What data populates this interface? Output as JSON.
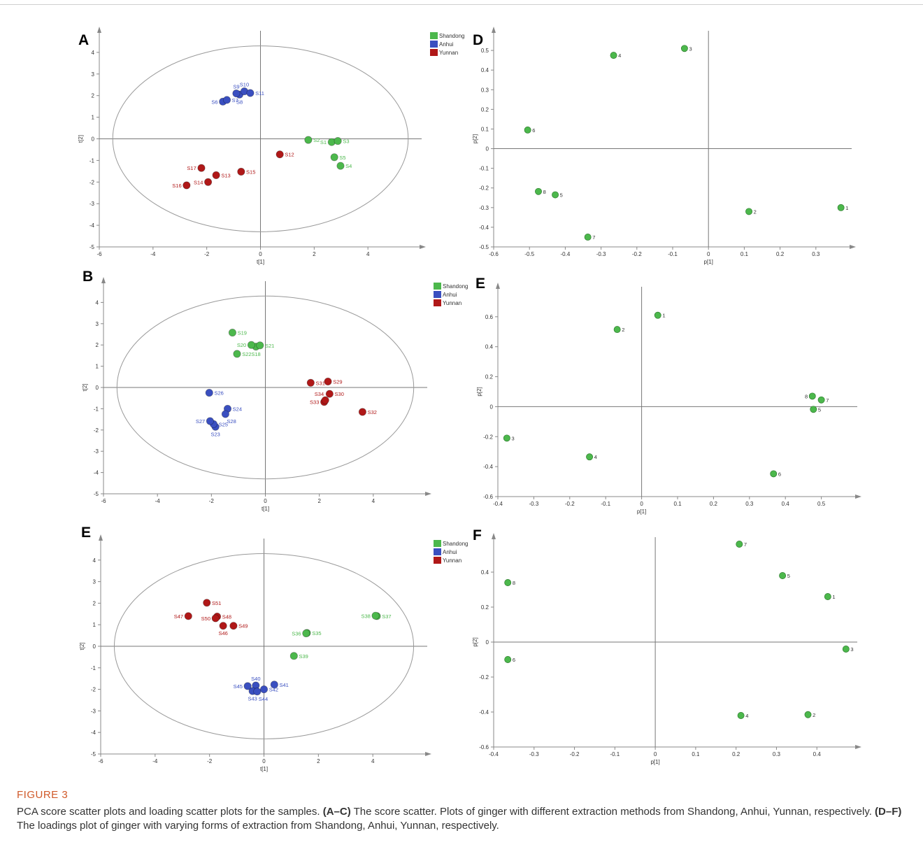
{
  "figure": {
    "label": "FIGURE 3",
    "caption_intro": "PCA score scatter plots and loading scatter plots for the samples. ",
    "caption_ref1": "(A–C)",
    "caption_mid": " The score scatter. Plots of ginger with different extraction methods from Shandong, Anhui, Yunnan, respectively. ",
    "caption_ref2": "(D–F)",
    "caption_end": " The loadings plot of ginger with varying forms of extraction from Shandong, Anhui, Yunnan, respectively."
  },
  "colors": {
    "Shandong": "#4cb84c",
    "Anhui": "#3a4fc0",
    "Yunnan": "#b01818",
    "loading": "#4cb84c"
  },
  "chart_data": [
    {
      "panel": "A",
      "type": "scatter",
      "xlabel": "t[1]",
      "ylabel": "t[2]",
      "xlim": [
        -6,
        6
      ],
      "ylim": [
        -5,
        5
      ],
      "xticks": [
        -6,
        -4,
        -2,
        0,
        2,
        4
      ],
      "yticks": [
        -5,
        -4,
        -3,
        -2,
        -1,
        0,
        1,
        2,
        3,
        4
      ],
      "ellipse": {
        "rx": 5.5,
        "ry": 4.3
      },
      "legend": [
        "Shandong",
        "Anhui",
        "Yunnan"
      ],
      "points": [
        {
          "label": "S1",
          "x": 2.65,
          "y": -0.15,
          "group": "Shandong",
          "lpos": "l"
        },
        {
          "label": "S2",
          "x": 1.78,
          "y": -0.05,
          "group": "Shandong",
          "lpos": "r"
        },
        {
          "label": "S3",
          "x": 2.88,
          "y": -0.1,
          "group": "Shandong",
          "lpos": "r"
        },
        {
          "label": "S4",
          "x": 2.98,
          "y": -1.25,
          "group": "Shandong",
          "lpos": "r"
        },
        {
          "label": "S5",
          "x": 2.75,
          "y": -0.85,
          "group": "Shandong",
          "lpos": "r"
        },
        {
          "label": "S6",
          "x": -1.4,
          "y": 1.72,
          "group": "Anhui",
          "lpos": "l"
        },
        {
          "label": "S7",
          "x": -1.25,
          "y": 1.8,
          "group": "Anhui",
          "lpos": "r"
        },
        {
          "label": "S8",
          "x": -0.78,
          "y": 2.05,
          "group": "Anhui",
          "lpos": "b"
        },
        {
          "label": "S9",
          "x": -0.9,
          "y": 2.1,
          "group": "Anhui",
          "lpos": "t"
        },
        {
          "label": "S10",
          "x": -0.6,
          "y": 2.2,
          "group": "Anhui",
          "lpos": "t"
        },
        {
          "label": "S11",
          "x": -0.38,
          "y": 2.12,
          "group": "Anhui",
          "lpos": "r"
        },
        {
          "label": "S12",
          "x": 0.72,
          "y": -0.72,
          "group": "Yunnan",
          "lpos": "r"
        },
        {
          "label": "S13",
          "x": -1.65,
          "y": -1.68,
          "group": "Yunnan",
          "lpos": "r"
        },
        {
          "label": "S14",
          "x": -1.95,
          "y": -2.0,
          "group": "Yunnan",
          "lpos": "l"
        },
        {
          "label": "S15",
          "x": -0.72,
          "y": -1.52,
          "group": "Yunnan",
          "lpos": "r"
        },
        {
          "label": "S16",
          "x": -2.75,
          "y": -2.15,
          "group": "Yunnan",
          "lpos": "l"
        },
        {
          "label": "S17",
          "x": -2.2,
          "y": -1.35,
          "group": "Yunnan",
          "lpos": "l"
        }
      ]
    },
    {
      "panel": "B",
      "type": "scatter",
      "xlabel": "t[1]",
      "ylabel": "t[2]",
      "xlim": [
        -6,
        6
      ],
      "ylim": [
        -5,
        5
      ],
      "xticks": [
        -6,
        -4,
        -2,
        0,
        2,
        4
      ],
      "yticks": [
        -5,
        -4,
        -3,
        -2,
        -1,
        0,
        1,
        2,
        3,
        4
      ],
      "ellipse": {
        "rx": 5.5,
        "ry": 4.3
      },
      "legend": [
        "Shandong",
        "Anhui",
        "Yunnan"
      ],
      "points": [
        {
          "label": "S18",
          "x": -0.35,
          "y": 1.92,
          "group": "Shandong",
          "lpos": "b"
        },
        {
          "label": "S19",
          "x": -1.22,
          "y": 2.58,
          "group": "Shandong",
          "lpos": "r"
        },
        {
          "label": "S20",
          "x": -0.52,
          "y": 2.0,
          "group": "Shandong",
          "lpos": "l"
        },
        {
          "label": "S21",
          "x": -0.2,
          "y": 1.98,
          "group": "Shandong",
          "lpos": "r"
        },
        {
          "label": "S22",
          "x": -1.05,
          "y": 1.58,
          "group": "Shandong",
          "lpos": "r"
        },
        {
          "label": "S23",
          "x": -1.85,
          "y": -1.85,
          "group": "Anhui",
          "lpos": "b"
        },
        {
          "label": "S24",
          "x": -1.4,
          "y": -1.0,
          "group": "Anhui",
          "lpos": "r"
        },
        {
          "label": "S25",
          "x": -1.92,
          "y": -1.72,
          "group": "Anhui",
          "lpos": "r"
        },
        {
          "label": "S26",
          "x": -2.08,
          "y": -0.25,
          "group": "Anhui",
          "lpos": "r"
        },
        {
          "label": "S27",
          "x": -2.05,
          "y": -1.58,
          "group": "Anhui",
          "lpos": "l"
        },
        {
          "label": "S28",
          "x": -1.48,
          "y": -1.25,
          "group": "Anhui",
          "lpos": "br"
        },
        {
          "label": "S29",
          "x": 2.32,
          "y": 0.28,
          "group": "Yunnan",
          "lpos": "r"
        },
        {
          "label": "S30",
          "x": 2.38,
          "y": -0.3,
          "group": "Yunnan",
          "lpos": "r"
        },
        {
          "label": "S31",
          "x": 1.68,
          "y": 0.22,
          "group": "Yunnan",
          "lpos": "r"
        },
        {
          "label": "S32",
          "x": 3.6,
          "y": -1.15,
          "group": "Yunnan",
          "lpos": "r"
        },
        {
          "label": "S33",
          "x": 2.18,
          "y": -0.68,
          "group": "Yunnan",
          "lpos": "l"
        },
        {
          "label": "S34",
          "x": 2.22,
          "y": -0.6,
          "group": "Yunnan",
          "lpos": "tl"
        }
      ]
    },
    {
      "panel": "E",
      "type": "scatter",
      "xlabel": "t[1]",
      "ylabel": "t[2]",
      "xlim": [
        -6,
        6
      ],
      "ylim": [
        -5,
        5
      ],
      "xticks": [
        -6,
        -4,
        -2,
        0,
        2,
        4
      ],
      "yticks": [
        -5,
        -4,
        -3,
        -2,
        -1,
        0,
        1,
        2,
        3,
        4
      ],
      "ellipse": {
        "rx": 5.5,
        "ry": 4.3
      },
      "legend": [
        "Shandong",
        "Anhui",
        "Yunnan"
      ],
      "points": [
        {
          "label": "S35",
          "x": 1.58,
          "y": 0.62,
          "group": "Shandong",
          "lpos": "r"
        },
        {
          "label": "S36",
          "x": 1.55,
          "y": 0.6,
          "group": "Shandong",
          "lpos": "l"
        },
        {
          "label": "S37",
          "x": 4.15,
          "y": 1.4,
          "group": "Shandong",
          "lpos": "r"
        },
        {
          "label": "S38",
          "x": 4.1,
          "y": 1.42,
          "group": "Shandong",
          "lpos": "l"
        },
        {
          "label": "S39",
          "x": 1.1,
          "y": -0.45,
          "group": "Shandong",
          "lpos": "r"
        },
        {
          "label": "S40",
          "x": -0.3,
          "y": -1.82,
          "group": "Anhui",
          "lpos": "t"
        },
        {
          "label": "S41",
          "x": 0.38,
          "y": -1.78,
          "group": "Anhui",
          "lpos": "r"
        },
        {
          "label": "S42",
          "x": 0.0,
          "y": -2.0,
          "group": "Anhui",
          "lpos": "r"
        },
        {
          "label": "S43",
          "x": -0.42,
          "y": -2.08,
          "group": "Anhui",
          "lpos": "b"
        },
        {
          "label": "S44",
          "x": -0.25,
          "y": -2.1,
          "group": "Anhui",
          "lpos": "br"
        },
        {
          "label": "S45",
          "x": -0.6,
          "y": -1.85,
          "group": "Anhui",
          "lpos": "l"
        },
        {
          "label": "S46",
          "x": -1.5,
          "y": 0.95,
          "group": "Yunnan",
          "lpos": "b"
        },
        {
          "label": "S47",
          "x": -2.78,
          "y": 1.4,
          "group": "Yunnan",
          "lpos": "l"
        },
        {
          "label": "S48",
          "x": -1.72,
          "y": 1.38,
          "group": "Yunnan",
          "lpos": "r"
        },
        {
          "label": "S49",
          "x": -1.12,
          "y": 0.95,
          "group": "Yunnan",
          "lpos": "r"
        },
        {
          "label": "S50",
          "x": -1.78,
          "y": 1.3,
          "group": "Yunnan",
          "lpos": "l"
        },
        {
          "label": "S51",
          "x": -2.1,
          "y": 2.02,
          "group": "Yunnan",
          "lpos": "r"
        }
      ]
    },
    {
      "panel": "D",
      "type": "scatter",
      "xlabel": "p[1]",
      "ylabel": "p[2]",
      "xlim": [
        -0.6,
        0.4
      ],
      "ylim": [
        -0.5,
        0.6
      ],
      "xticks": [
        -0.6,
        -0.5,
        -0.4,
        -0.3,
        -0.2,
        -0.1,
        0,
        0.1,
        0.2,
        0.3
      ],
      "yticks": [
        -0.5,
        -0.4,
        -0.3,
        -0.2,
        -0.1,
        0,
        0.1,
        0.2,
        0.3,
        0.4,
        0.5
      ],
      "points": [
        {
          "label": "1",
          "x": 0.37,
          "y": -0.3
        },
        {
          "label": "2",
          "x": 0.113,
          "y": -0.32
        },
        {
          "label": "3",
          "x": -0.067,
          "y": 0.51
        },
        {
          "label": "4",
          "x": -0.265,
          "y": 0.475
        },
        {
          "label": "5",
          "x": -0.428,
          "y": -0.235
        },
        {
          "label": "6",
          "x": -0.505,
          "y": 0.095
        },
        {
          "label": "7",
          "x": -0.337,
          "y": -0.45
        },
        {
          "label": "8",
          "x": -0.475,
          "y": -0.218
        }
      ]
    },
    {
      "panel": "E",
      "type": "scatter",
      "xlabel": "p[1]",
      "ylabel": "p[2]",
      "xlim": [
        -0.4,
        0.6
      ],
      "ylim": [
        -0.6,
        0.8
      ],
      "xticks": [
        -0.4,
        -0.3,
        -0.2,
        -0.1,
        0,
        0.1,
        0.2,
        0.3,
        0.4,
        0.5
      ],
      "yticks": [
        -0.6,
        -0.4,
        -0.2,
        0,
        0.2,
        0.4,
        0.6
      ],
      "points": [
        {
          "label": "1",
          "x": 0.045,
          "y": 0.61
        },
        {
          "label": "2",
          "x": -0.068,
          "y": 0.515
        },
        {
          "label": "3",
          "x": -0.375,
          "y": -0.21
        },
        {
          "label": "4",
          "x": -0.145,
          "y": -0.335
        },
        {
          "label": "5",
          "x": 0.478,
          "y": -0.018
        },
        {
          "label": "6",
          "x": 0.367,
          "y": -0.448
        },
        {
          "label": "7",
          "x": 0.5,
          "y": 0.045
        },
        {
          "label": "8",
          "x": 0.475,
          "y": 0.07,
          "lpos": "l"
        }
      ]
    },
    {
      "panel": "F",
      "type": "scatter",
      "xlabel": "p[1]",
      "ylabel": "p[2]",
      "xlim": [
        -0.4,
        0.5
      ],
      "ylim": [
        -0.6,
        0.6
      ],
      "xticks": [
        -0.4,
        -0.3,
        -0.2,
        -0.1,
        0,
        0.1,
        0.2,
        0.3,
        0.4
      ],
      "yticks": [
        -0.6,
        -0.4,
        -0.2,
        0,
        0.2,
        0.4
      ],
      "points": [
        {
          "label": "1",
          "x": 0.427,
          "y": 0.26
        },
        {
          "label": "2",
          "x": 0.378,
          "y": -0.415
        },
        {
          "label": "3",
          "x": 0.472,
          "y": -0.04
        },
        {
          "label": "4",
          "x": 0.212,
          "y": -0.42
        },
        {
          "label": "5",
          "x": 0.315,
          "y": 0.38
        },
        {
          "label": "6",
          "x": -0.365,
          "y": -0.1
        },
        {
          "label": "7",
          "x": 0.208,
          "y": 0.56
        },
        {
          "label": "8",
          "x": -0.365,
          "y": 0.34
        }
      ]
    }
  ]
}
